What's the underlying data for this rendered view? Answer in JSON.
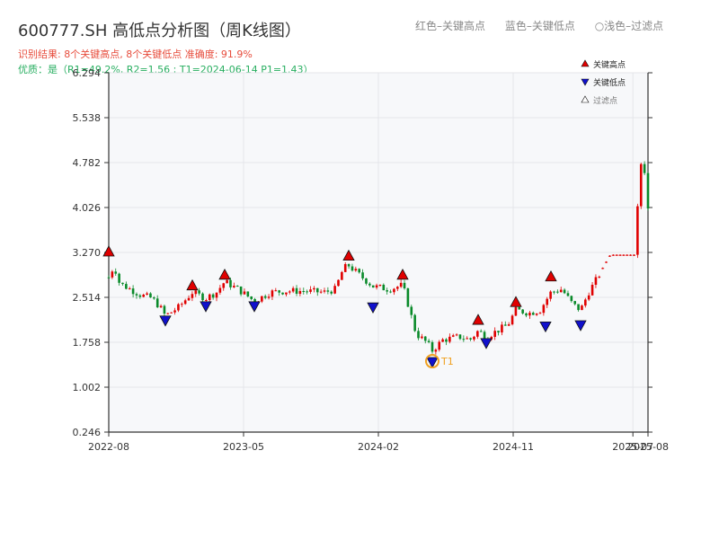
{
  "header": {
    "title": "600777.SH 高低点分析图（周K线图）",
    "legend_top": [
      "红色–关键高点",
      "蓝色–关键低点",
      "○浅色–过滤点"
    ],
    "summary": "识别结果: 8个关键高点, 8个关键低点  准确度: 91.9%",
    "quality": "优质：是（R1=49.2%, R2=1.56 ; T1=2024-06-14 P1=1.43）"
  },
  "chart_data": {
    "type": "candlestick",
    "title": "600777.SH 高低点分析图（周K线图）",
    "ylim": [
      0.246,
      6.294
    ],
    "yticks": [
      "0.246",
      "1.002",
      "1.758",
      "2.514",
      "3.270",
      "4.026",
      "4.782",
      "5.538",
      "6.294"
    ],
    "xlim": [
      "2022-08",
      "2025-08"
    ],
    "xticks": [
      {
        "label": "2022-08",
        "pos": 0.0
      },
      {
        "label": "2023-05",
        "pos": 0.25
      },
      {
        "label": "2024-02",
        "pos": 0.5
      },
      {
        "label": "2024-11",
        "pos": 0.75
      },
      {
        "label": "2025-07",
        "pos": 0.972
      },
      {
        "label": "2025-08",
        "pos": 1.0
      }
    ],
    "grid": true,
    "legend_placement": "top-right",
    "legend": [
      {
        "label": "关键高点",
        "color": "#e00000"
      },
      {
        "label": "关键低点",
        "color": "#1010cc"
      },
      {
        "label": "过滤点",
        "color": "#ffffff"
      }
    ],
    "colors": {
      "up": "#e00000",
      "down": "#0a8a2a",
      "high": "#e00000",
      "low": "#1010cc",
      "t1": "#f0a020"
    },
    "key_highs": [
      {
        "t": 0.0,
        "v": 3.27
      },
      {
        "t": 0.155,
        "v": 2.7
      },
      {
        "t": 0.215,
        "v": 2.88
      },
      {
        "t": 0.445,
        "v": 3.2
      },
      {
        "t": 0.545,
        "v": 2.88
      },
      {
        "t": 0.685,
        "v": 2.12
      },
      {
        "t": 0.755,
        "v": 2.42
      },
      {
        "t": 0.82,
        "v": 2.85
      }
    ],
    "key_lows": [
      {
        "t": 0.105,
        "v": 2.14
      },
      {
        "t": 0.18,
        "v": 2.38
      },
      {
        "t": 0.27,
        "v": 2.38
      },
      {
        "t": 0.49,
        "v": 2.36
      },
      {
        "t": 0.6,
        "v": 1.44
      },
      {
        "t": 0.7,
        "v": 1.76
      },
      {
        "t": 0.81,
        "v": 2.04
      },
      {
        "t": 0.875,
        "v": 2.06
      }
    ],
    "t1": {
      "label": "T1",
      "t": 0.6,
      "v": 1.44
    },
    "price_path": [
      [
        0.0,
        2.85
      ],
      [
        0.01,
        3.05
      ],
      [
        0.02,
        2.75
      ],
      [
        0.04,
        2.65
      ],
      [
        0.06,
        2.55
      ],
      [
        0.08,
        2.5
      ],
      [
        0.095,
        2.35
      ],
      [
        0.105,
        2.2
      ],
      [
        0.13,
        2.35
      ],
      [
        0.155,
        2.6
      ],
      [
        0.18,
        2.5
      ],
      [
        0.2,
        2.6
      ],
      [
        0.215,
        2.78
      ],
      [
        0.24,
        2.65
      ],
      [
        0.27,
        2.45
      ],
      [
        0.3,
        2.6
      ],
      [
        0.33,
        2.62
      ],
      [
        0.36,
        2.62
      ],
      [
        0.4,
        2.6
      ],
      [
        0.42,
        2.65
      ],
      [
        0.435,
        3.0
      ],
      [
        0.445,
        3.05
      ],
      [
        0.47,
        2.85
      ],
      [
        0.49,
        2.7
      ],
      [
        0.52,
        2.65
      ],
      [
        0.545,
        2.72
      ],
      [
        0.555,
        2.4
      ],
      [
        0.57,
        1.9
      ],
      [
        0.59,
        1.75
      ],
      [
        0.6,
        1.62
      ],
      [
        0.62,
        1.8
      ],
      [
        0.65,
        1.85
      ],
      [
        0.67,
        1.8
      ],
      [
        0.685,
        1.95
      ],
      [
        0.7,
        1.85
      ],
      [
        0.72,
        1.95
      ],
      [
        0.74,
        2.05
      ],
      [
        0.755,
        2.3
      ],
      [
        0.78,
        2.25
      ],
      [
        0.8,
        2.3
      ],
      [
        0.82,
        2.6
      ],
      [
        0.84,
        2.65
      ],
      [
        0.86,
        2.4
      ],
      [
        0.875,
        2.3
      ],
      [
        0.89,
        2.6
      ],
      [
        0.91,
        2.9
      ],
      [
        0.93,
        3.22
      ],
      [
        0.95,
        3.22
      ],
      [
        0.975,
        3.22
      ],
      [
        0.985,
        4.6
      ],
      [
        0.99,
        5.0
      ],
      [
        1.0,
        4.0
      ]
    ]
  }
}
